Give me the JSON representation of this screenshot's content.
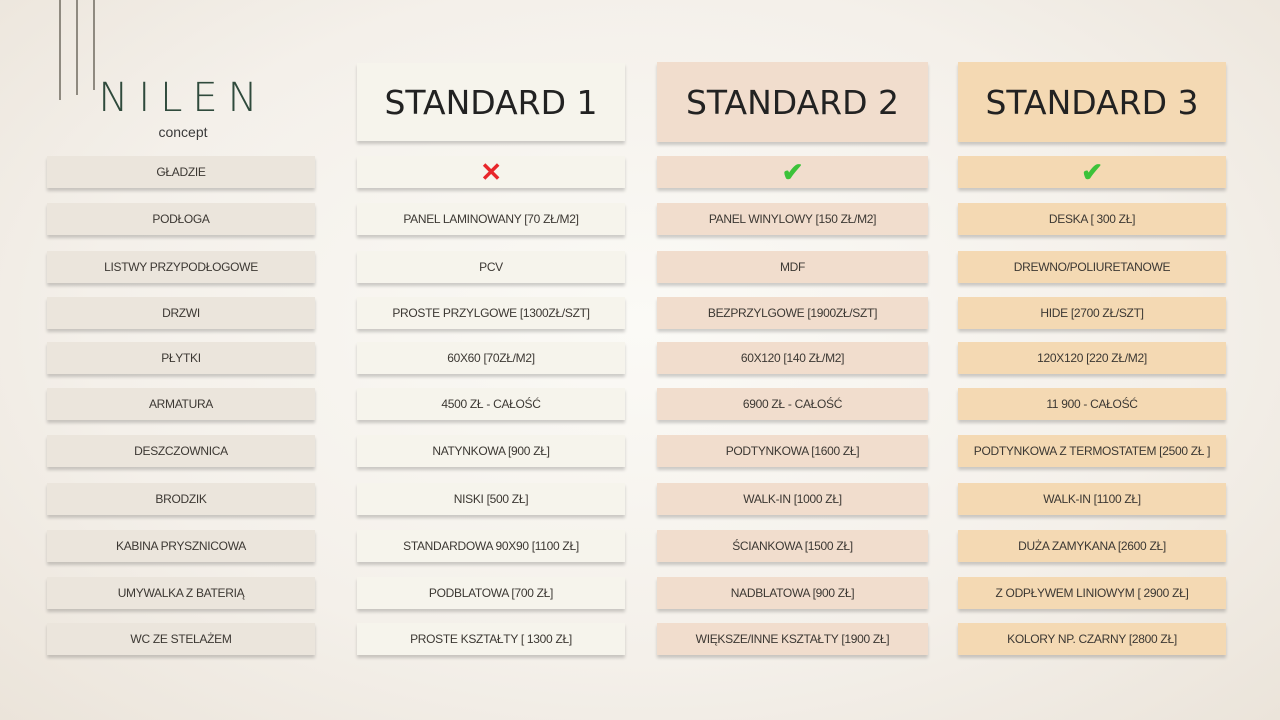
{
  "logo": {
    "word": "NILEN",
    "sub": "concept",
    "color": "#2f4a3c"
  },
  "headers": [
    "STANDARD 1",
    "STANDARD 2",
    "STANDARD 3"
  ],
  "colors": {
    "label": "#ebe5dc",
    "standard1": "#f6f4ec",
    "standard2": "#f1ddcd",
    "standard3": "#f4d9b3",
    "cross": "#e8262b",
    "check": "#3cc23a"
  },
  "rows": [
    {
      "label": "GŁADZIE",
      "s1": "✕",
      "s2": "✔",
      "s3": "✔",
      "s1_icon": "cross-icon",
      "s2_icon": "check-icon",
      "s3_icon": "check-icon"
    },
    {
      "label": "PODŁOGA",
      "s1": "PANEL LAMINOWANY [70 ZŁ/M2]",
      "s2": "PANEL WINYLOWY [150 ZŁ/M2]",
      "s3": "DESKA [ 300 ZŁ]"
    },
    {
      "label": "LISTWY PRZYPODŁOGOWE",
      "s1": "PCV",
      "s2": "MDF",
      "s3": "DREWNO/POLIURETANOWE"
    },
    {
      "label": "DRZWI",
      "s1": "PROSTE PRZYLGOWE [1300ZŁ/SZT]",
      "s2": "BEZPRZYLGOWE [1900ZŁ/SZT]",
      "s3": "HIDE [2700 ZŁ/SZT]"
    },
    {
      "label": "PŁYTKI",
      "s1": "60X60 [70ZŁ/M2]",
      "s2": "60X120 [140 ZŁ/M2]",
      "s3": "120X120 [220 ZŁ/M2]"
    },
    {
      "label": "ARMATURA",
      "s1": "4500 ZŁ - CAŁOŚĆ",
      "s2": "6900 ZŁ - CAŁOŚĆ",
      "s3": "11 900 - CAŁOŚĆ"
    },
    {
      "label": "DESZCZOWNICA",
      "s1": "NATYNKOWA [900 ZŁ]",
      "s2": "PODTYNKOWA [1600 ZŁ]",
      "s3": "PODTYNKOWA Z TERMOSTATEM [2500 ZŁ ]"
    },
    {
      "label": "BRODZIK",
      "s1": "NISKI [500 ZŁ]",
      "s2": "WALK-IN [1000 ZŁ]",
      "s3": "WALK-IN [1100 ZŁ]"
    },
    {
      "label": "KABINA PRYSZNICOWA",
      "s1": "STANDARDOWA 90X90 [1100 ZŁ]",
      "s2": "ŚCIANKOWA [1500 ZŁ]",
      "s3": "DUŻA ZAMYKANA [2600 ZŁ]"
    },
    {
      "label": "UMYWALKA Z BATERIĄ",
      "s1": "PODBLATOWA [700 ZŁ]",
      "s2": "NADBLATOWA [900 ZŁ]",
      "s3": "Z ODPŁYWEM LINIOWYM [ 2900 ZŁ]"
    },
    {
      "label": "WC ZE STELAŻEM",
      "s1": "PROSTE KSZTAŁTY [ 1300 ZŁ]",
      "s2": "WIĘKSZE/INNE KSZTAŁTY [1900 ZŁ]",
      "s3": "KOLORY NP. CZARNY [2800 ZŁ]"
    }
  ]
}
